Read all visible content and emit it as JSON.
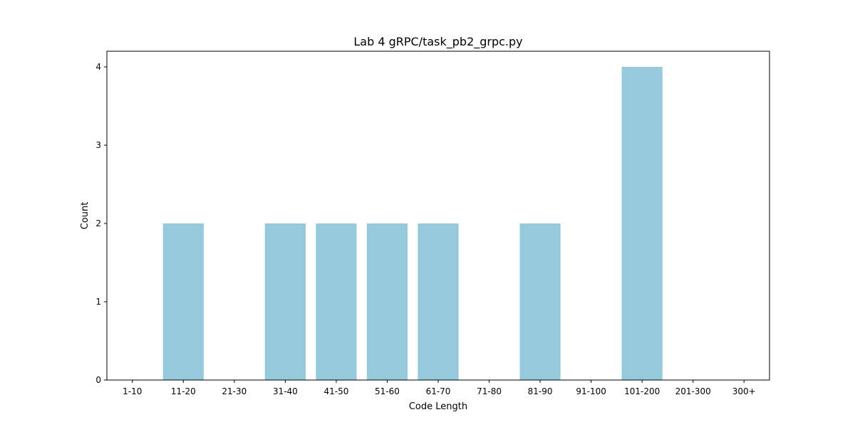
{
  "chart_data": {
    "type": "bar",
    "title": "Lab 4 gRPC/task_pb2_grpc.py",
    "xlabel": "Code Length",
    "ylabel": "Count",
    "categories": [
      "1-10",
      "11-20",
      "21-30",
      "31-40",
      "41-50",
      "51-60",
      "61-70",
      "71-80",
      "81-90",
      "91-100",
      "101-200",
      "201-300",
      "300+"
    ],
    "values": [
      0,
      2,
      0,
      2,
      2,
      2,
      2,
      0,
      2,
      0,
      4,
      0,
      0
    ],
    "ylim": [
      0,
      4.2
    ],
    "yticks": [
      0,
      1,
      2,
      3,
      4
    ],
    "grid": false,
    "bar_color": "#96c9dc"
  }
}
